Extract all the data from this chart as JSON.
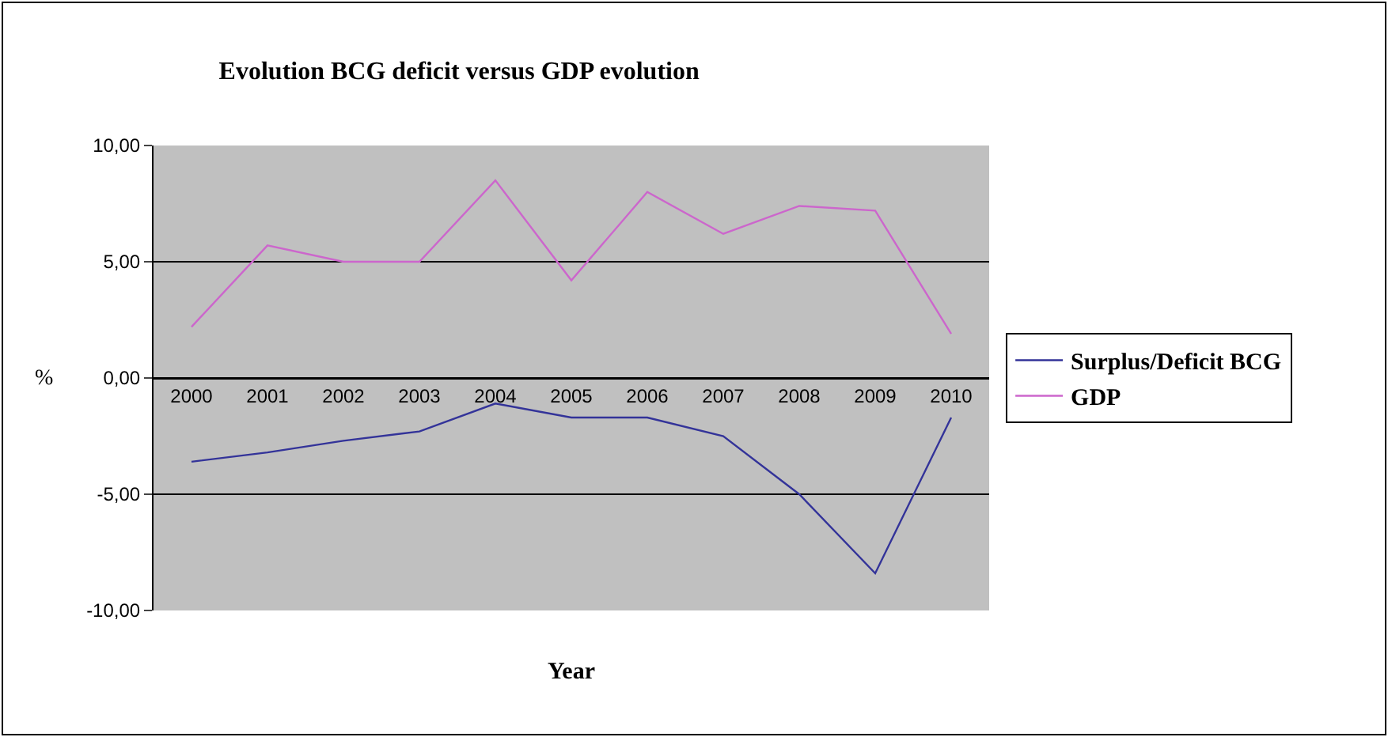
{
  "chart_data": {
    "type": "line",
    "title": "Evolution BCG deficit versus GDP evolution",
    "xlabel": "Year",
    "ylabel": "%",
    "categories": [
      "2000",
      "2001",
      "2002",
      "2003",
      "2004",
      "2005",
      "2006",
      "2007",
      "2008",
      "2009",
      "2010"
    ],
    "series": [
      {
        "name": "Surplus/Deficit BCG",
        "color": "#333399",
        "values": [
          -3.6,
          -3.2,
          -2.7,
          -2.3,
          -1.1,
          -1.7,
          -1.7,
          -2.5,
          -5.0,
          -8.4,
          -1.7
        ]
      },
      {
        "name": "GDP",
        "color": "#cc66cc",
        "values": [
          2.2,
          5.7,
          5.0,
          5.0,
          8.5,
          4.2,
          8.0,
          6.2,
          7.4,
          7.2,
          1.9
        ]
      }
    ],
    "ylim": [
      -10,
      10
    ],
    "yticks": [
      {
        "value": -10,
        "label": "-10,00"
      },
      {
        "value": -5,
        "label": "-5,00"
      },
      {
        "value": 0,
        "label": "0,00"
      },
      {
        "value": 5,
        "label": "5,00"
      },
      {
        "value": 10,
        "label": "10,00"
      }
    ],
    "grid": "y",
    "legend": "right",
    "marker": "none",
    "line_style": "solid"
  }
}
